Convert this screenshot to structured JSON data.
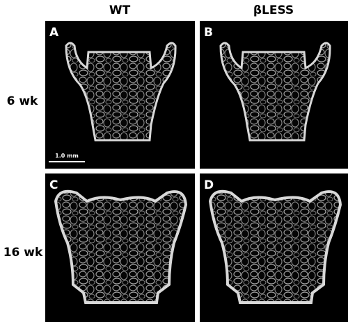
{
  "column_headers": [
    "WT",
    "βLESS"
  ],
  "row_labels": [
    "6 wk",
    "16 wk"
  ],
  "panels": [
    {
      "label": "A"
    },
    {
      "label": "B"
    },
    {
      "label": "C"
    },
    {
      "label": "D"
    }
  ],
  "scale_bar": "1.0 mm"
}
